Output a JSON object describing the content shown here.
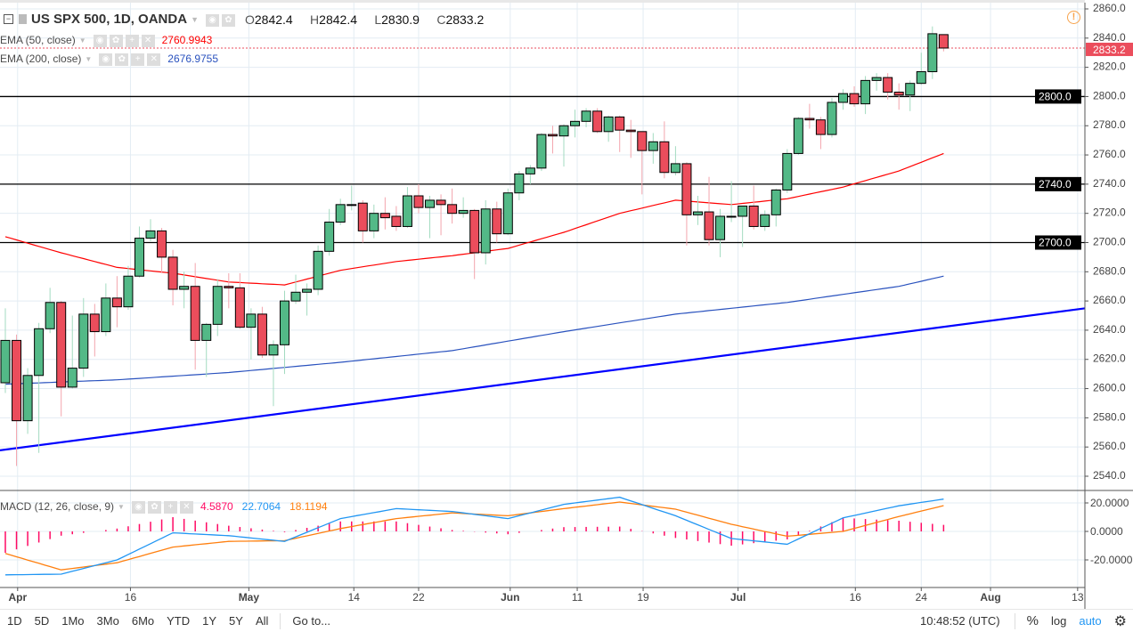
{
  "symbol": {
    "title": "US SPX 500, 1D, OANDA",
    "open_label": "O",
    "open": "2842.4",
    "high_label": "H",
    "high": "2842.4",
    "low_label": "L",
    "low": "2830.9",
    "close_label": "C",
    "close": "2833.2"
  },
  "indicators": [
    {
      "label": "EMA (50, close)",
      "value": "2760.9943",
      "color": "#ff0000"
    },
    {
      "label": "EMA (200, close)",
      "value": "2676.9755",
      "color": "#2a52be"
    }
  ],
  "macd": {
    "label": "MACD (12, 26, close, 9)",
    "hist": "4.5870",
    "macd": "22.7064",
    "signal": "18.1194",
    "hist_color": "#ff0a64",
    "macd_color": "#2196f3",
    "signal_color": "#ff7f0e"
  },
  "colors": {
    "up": "#53b987",
    "down": "#eb4d5c",
    "trendline": "#0000ff",
    "level": "#000000",
    "last_price": "#eb4d5c",
    "warning": "#f7a24a"
  },
  "price_axis": {
    "ticks": [
      "2540.0",
      "2560.0",
      "2580.0",
      "2600.0",
      "2620.0",
      "2640.0",
      "2660.0",
      "2680.0",
      "2700.0",
      "2720.0",
      "2740.0",
      "2760.0",
      "2780.0",
      "2800.0",
      "2820.0",
      "2840.0",
      "2860.0"
    ],
    "last_price": "2833.2",
    "levels": [
      "2800.0",
      "2740.0",
      "2700.0"
    ]
  },
  "macd_axis": {
    "ticks": [
      "20.0000",
      "0.0000",
      "-20.0000"
    ]
  },
  "time_axis": [
    {
      "label": "Apr",
      "bar": 1.1,
      "bold": true
    },
    {
      "label": "16",
      "bar": 11.2
    },
    {
      "label": "May",
      "bar": 21.8,
      "bold": true
    },
    {
      "label": "14",
      "bar": 31.2
    },
    {
      "label": "22",
      "bar": 37
    },
    {
      "label": "Jun",
      "bar": 45.2,
      "bold": true
    },
    {
      "label": "11",
      "bar": 51.2
    },
    {
      "label": "19",
      "bar": 57.1
    },
    {
      "label": "Jul",
      "bar": 65.6,
      "bold": true
    },
    {
      "label": "16",
      "bar": 76.1
    },
    {
      "label": "24",
      "bar": 82
    },
    {
      "label": "Aug",
      "bar": 88.2,
      "bold": true
    },
    {
      "label": "13",
      "bar": 96
    }
  ],
  "chart_data": {
    "type": "candlestick",
    "ylim": [
      2530,
      2866
    ],
    "ohlc": [
      [
        2604,
        2655,
        2597,
        2633
      ],
      [
        2633,
        2637,
        2547,
        2578
      ],
      [
        2578,
        2614,
        2569,
        2609
      ],
      [
        2609,
        2645,
        2556,
        2641
      ],
      [
        2641,
        2669,
        2638,
        2659
      ],
      [
        2659,
        2660,
        2581,
        2601
      ],
      [
        2601,
        2650,
        2600,
        2614
      ],
      [
        2614,
        2662,
        2608,
        2651
      ],
      [
        2651,
        2658,
        2622,
        2639
      ],
      [
        2639,
        2672,
        2636,
        2662
      ],
      [
        2662,
        2677,
        2642,
        2656
      ],
      [
        2656,
        2684,
        2654,
        2677
      ],
      [
        2677,
        2711,
        2676,
        2703
      ],
      [
        2703,
        2716,
        2701,
        2708
      ],
      [
        2708,
        2710,
        2679,
        2690
      ],
      [
        2690,
        2695,
        2657,
        2668
      ],
      [
        2668,
        2680,
        2655,
        2670
      ],
      [
        2670,
        2686,
        2613,
        2633
      ],
      [
        2633,
        2645,
        2608,
        2644
      ],
      [
        2644,
        2675,
        2636,
        2670
      ],
      [
        2670,
        2679,
        2655,
        2669
      ],
      [
        2669,
        2679,
        2641,
        2642
      ],
      [
        2642,
        2655,
        2620,
        2651
      ],
      [
        2651,
        2656,
        2621,
        2623
      ],
      [
        2623,
        2633,
        2588,
        2630
      ],
      [
        2630,
        2667,
        2610,
        2660
      ],
      [
        2660,
        2678,
        2658,
        2666
      ],
      [
        2666,
        2672,
        2650,
        2668
      ],
      [
        2668,
        2698,
        2664,
        2694
      ],
      [
        2694,
        2723,
        2691,
        2714
      ],
      [
        2714,
        2730,
        2712,
        2726
      ],
      [
        2726,
        2739,
        2722,
        2726
      ],
      [
        2727,
        2729,
        2700,
        2708
      ],
      [
        2708,
        2726,
        2703,
        2720
      ],
      [
        2720,
        2731,
        2709,
        2717
      ],
      [
        2718,
        2725,
        2708,
        2711
      ],
      [
        2711,
        2738,
        2710,
        2732
      ],
      [
        2732,
        2740,
        2720,
        2724
      ],
      [
        2724,
        2732,
        2703,
        2729
      ],
      [
        2729,
        2733,
        2705,
        2726
      ],
      [
        2726,
        2737,
        2713,
        2720
      ],
      [
        2720,
        2731,
        2717,
        2722
      ],
      [
        2722,
        2723,
        2675,
        2693
      ],
      [
        2693,
        2729,
        2685,
        2723
      ],
      [
        2723,
        2728,
        2700,
        2706
      ],
      [
        2706,
        2737,
        2705,
        2734
      ],
      [
        2734,
        2749,
        2729,
        2747
      ],
      [
        2747,
        2753,
        2740,
        2751
      ],
      [
        2751,
        2775,
        2749,
        2774
      ],
      [
        2774,
        2780,
        2761,
        2773
      ],
      [
        2773,
        2781,
        2752,
        2780
      ],
      [
        2780,
        2791,
        2772,
        2783
      ],
      [
        2783,
        2792,
        2779,
        2790
      ],
      [
        2790,
        2792,
        2775,
        2776
      ],
      [
        2776,
        2787,
        2769,
        2786
      ],
      [
        2786,
        2787,
        2762,
        2777
      ],
      [
        2777,
        2784,
        2758,
        2776
      ],
      [
        2776,
        2776,
        2733,
        2763
      ],
      [
        2763,
        2775,
        2754,
        2769
      ],
      [
        2769,
        2783,
        2744,
        2748
      ],
      [
        2748,
        2766,
        2746,
        2754
      ],
      [
        2754,
        2755,
        2698,
        2719
      ],
      [
        2719,
        2732,
        2712,
        2721
      ],
      [
        2721,
        2745,
        2698,
        2702
      ],
      [
        2702,
        2723,
        2690,
        2718
      ],
      [
        2718,
        2742,
        2714,
        2718
      ],
      [
        2718,
        2725,
        2697,
        2725
      ],
      [
        2725,
        2739,
        2709,
        2711
      ],
      [
        2711,
        2722,
        2708,
        2719
      ],
      [
        2719,
        2737,
        2711,
        2736
      ],
      [
        2736,
        2764,
        2734,
        2761
      ],
      [
        2761,
        2786,
        2760,
        2785
      ],
      [
        2785,
        2795,
        2778,
        2784
      ],
      [
        2784,
        2786,
        2764,
        2774
      ],
      [
        2774,
        2799,
        2772,
        2796
      ],
      [
        2796,
        2805,
        2791,
        2802
      ],
      [
        2802,
        2807,
        2793,
        2795
      ],
      [
        2795,
        2814,
        2788,
        2811
      ],
      [
        2811,
        2816,
        2804,
        2813
      ],
      [
        2813,
        2816,
        2798,
        2803
      ],
      [
        2803,
        2809,
        2791,
        2801
      ],
      [
        2801,
        2811,
        2790,
        2809
      ],
      [
        2809,
        2830,
        2808,
        2817
      ],
      [
        2817,
        2848,
        2812,
        2843
      ],
      [
        2842.4,
        2842.4,
        2830.9,
        2833.2
      ]
    ],
    "ema50": {
      "bars": [
        0,
        5,
        10,
        15,
        20,
        25,
        30,
        35,
        40,
        45,
        50,
        55,
        60,
        65,
        70,
        75,
        80,
        84
      ],
      "values": [
        2704,
        2693,
        2683,
        2679,
        2673,
        2671,
        2681,
        2687,
        2691,
        2696,
        2707,
        2720,
        2729,
        2726,
        2730,
        2738,
        2749,
        2761
      ]
    },
    "ema200": {
      "bars": [
        0,
        10,
        20,
        30,
        40,
        50,
        60,
        70,
        80,
        84
      ],
      "values": [
        2603,
        2606,
        2611,
        2618,
        2626,
        2639,
        2651,
        2659,
        2670,
        2677
      ]
    },
    "levels": [
      2800,
      2740,
      2700
    ],
    "trendline": [
      {
        "bar": -0.5,
        "price": 2557.7
      },
      {
        "bar": 96.7,
        "price": 2655
      }
    ],
    "macd_line": {
      "bars": [
        0,
        5,
        10,
        15,
        20,
        25,
        30,
        35,
        40,
        45,
        50,
        55,
        60,
        65,
        70,
        75,
        80,
        84
      ],
      "values": [
        -30.5,
        -30,
        -20,
        -1,
        -3,
        -7,
        9,
        16,
        14,
        9,
        19,
        24,
        11,
        -5,
        -9,
        9.5,
        18,
        22.7
      ]
    },
    "signal_line": {
      "bars": [
        0,
        5,
        10,
        15,
        20,
        25,
        30,
        35,
        40,
        45,
        50,
        55,
        60,
        65,
        70,
        75,
        80,
        84
      ],
      "values": [
        -15.5,
        -27,
        -22,
        -11,
        -7,
        -6.5,
        2,
        9,
        13,
        11,
        16,
        20.6,
        15.6,
        5,
        -3.4,
        0,
        10.5,
        18.1
      ]
    },
    "macd_ylim": [
      -37,
      29
    ]
  },
  "toolbar": {
    "ranges": [
      "1D",
      "5D",
      "1Mo",
      "3Mo",
      "6Mo",
      "YTD",
      "1Y",
      "5Y",
      "All"
    ],
    "goto": "Go to...",
    "time": "10:48:52 (UTC)",
    "percent": "%",
    "log": "log",
    "auto": "auto"
  }
}
